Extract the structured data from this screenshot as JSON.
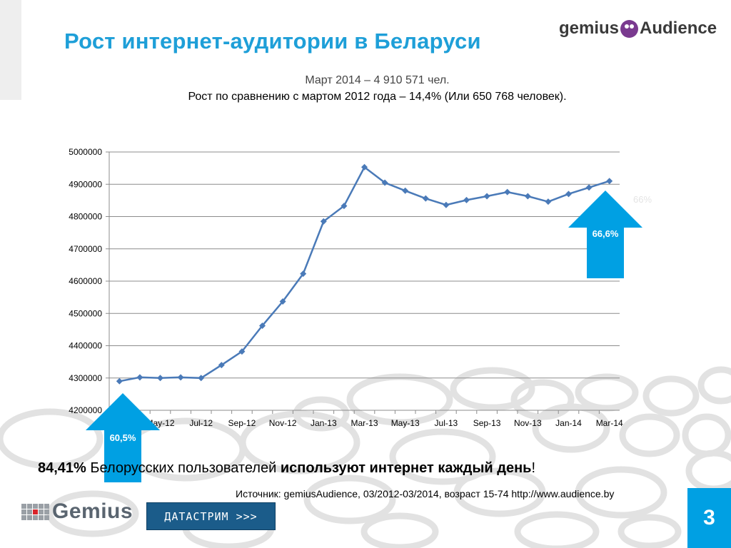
{
  "slide": {
    "title": "Рост интернет-аудитории в Беларуси",
    "subtitle_line1": "Март 2014 – 4 910 571  чел.",
    "subtitle_line2": "Рост по сравнению с мартом 2012 года –  14,4% (Или 650 768  человек).",
    "logo_left": "gemius",
    "logo_right": "Audience",
    "footer_percent": "84,41%",
    "footer_text": " Белорусских пользователей ",
    "footer_bold": "используют интернет каждый день",
    "footer_end": "!",
    "source": "Источник: gemiusAudience,  03/2012-03/2014, возраст 15-74 http://www.audience.by",
    "page_number": "3",
    "gemius_logo": "Gemius",
    "datastream_label": "ДАТАСТРИМ >>>"
  },
  "colors": {
    "title": "#1e9fd8",
    "line": "#4a7ab8",
    "arrow": "#00a0e3",
    "page_badge": "#00a0e3"
  },
  "chart_data": {
    "type": "line",
    "x": [
      "Mar-12",
      "Apr-12",
      "May-12",
      "Jun-12",
      "Jul-12",
      "Aug-12",
      "Sep-12",
      "Oct-12",
      "Nov-12",
      "Dec-12",
      "Jan-13",
      "Feb-13",
      "Mar-13",
      "Apr-13",
      "May-13",
      "Jun-13",
      "Jul-13",
      "Aug-13",
      "Sep-13",
      "Oct-13",
      "Nov-13",
      "Dec-13",
      "Jan-14",
      "Feb-14",
      "Mar-14"
    ],
    "x_tick_labels": [
      "Mar-12",
      "May-12",
      "Jul-12",
      "Sep-12",
      "Nov-12",
      "Jan-13",
      "Mar-13",
      "May-13",
      "Jul-13",
      "Sep-13",
      "Nov-13",
      "Jan-14",
      "Mar-14"
    ],
    "series": [
      {
        "values": [
          4290000,
          4302000,
          4300000,
          4302000,
          4300000,
          4340000,
          4382000,
          4462000,
          4537000,
          4623000,
          4785000,
          4833000,
          4953000,
          4905000,
          4880000,
          4856000,
          4836000,
          4851000,
          4863000,
          4876000,
          4863000,
          4846000,
          4870000,
          4890000,
          4910000
        ]
      }
    ],
    "ylim": [
      4200000,
      5000000
    ],
    "y_ticks": [
      4200000,
      4300000,
      4400000,
      4500000,
      4600000,
      4700000,
      4800000,
      4900000,
      5000000
    ],
    "grid": true,
    "annotations": [
      {
        "label": "60,5%",
        "at": "Mar-12",
        "shape": "up-arrow"
      },
      {
        "label": "66,6%",
        "at": "Mar-14",
        "shape": "up-arrow"
      },
      {
        "label": "66%",
        "at": "Mar-14",
        "faint": true
      }
    ]
  }
}
